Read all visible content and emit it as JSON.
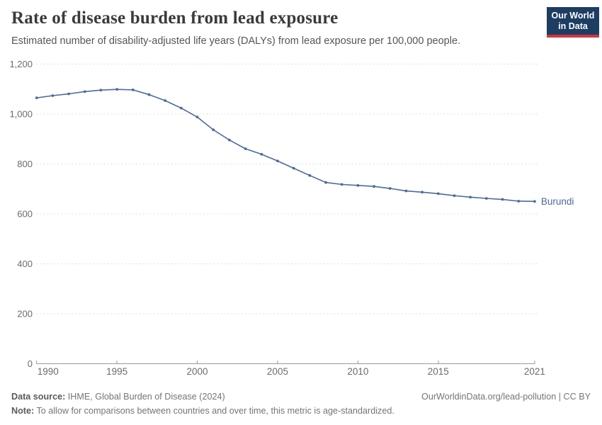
{
  "header": {
    "title": "Rate of disease burden from lead exposure",
    "subtitle": "Estimated number of disability-adjusted life years (DALYs) from lead exposure per 100,000 people.",
    "logo": {
      "line1": "Our World",
      "line2": "in Data",
      "bg_color": "#1d3d63",
      "accent_color": "#d1353f"
    }
  },
  "chart_data": {
    "type": "line",
    "title": "Rate of disease burden from lead exposure",
    "xlabel": "",
    "ylabel": "",
    "xlim": [
      1990,
      2021
    ],
    "ylim": [
      0,
      1200
    ],
    "grid": "horizontal-dashed",
    "legend_position": "end-of-line-label",
    "x": [
      1990,
      1991,
      1992,
      1993,
      1994,
      1995,
      1996,
      1997,
      1998,
      1999,
      2000,
      2001,
      2002,
      2003,
      2004,
      2005,
      2006,
      2007,
      2008,
      2009,
      2010,
      2011,
      2012,
      2013,
      2014,
      2015,
      2016,
      2017,
      2018,
      2019,
      2020,
      2021
    ],
    "series": [
      {
        "name": "Burundi",
        "color": "#4C6A9C",
        "values": [
          1065,
          1074,
          1081,
          1090,
          1096,
          1099,
          1097,
          1078,
          1054,
          1024,
          988,
          937,
          896,
          861,
          839,
          812,
          783,
          754,
          726,
          718,
          714,
          710,
          702,
          692,
          687,
          681,
          673,
          667,
          662,
          658,
          651,
          650
        ]
      }
    ],
    "xticks": [
      {
        "value": 1990,
        "label": "1990"
      },
      {
        "value": 1995,
        "label": "1995"
      },
      {
        "value": 2000,
        "label": "2000"
      },
      {
        "value": 2005,
        "label": "2005"
      },
      {
        "value": 2010,
        "label": "2010"
      },
      {
        "value": 2015,
        "label": "2015"
      },
      {
        "value": 2021,
        "label": "2021"
      }
    ],
    "yticks": [
      {
        "value": 0,
        "label": "0"
      },
      {
        "value": 200,
        "label": "200"
      },
      {
        "value": 400,
        "label": "400"
      },
      {
        "value": 600,
        "label": "600"
      },
      {
        "value": 800,
        "label": "800"
      },
      {
        "value": 1000,
        "label": "1,000"
      },
      {
        "value": 1200,
        "label": "1,200"
      }
    ]
  },
  "footer": {
    "data_source_label": "Data source:",
    "data_source_value": " IHME, Global Burden of Disease (2024)",
    "note_label": "Note:",
    "note_value": " To allow for comparisons between countries and over time, this metric is age-standardized.",
    "url_text": "OurWorldinData.org/lead-pollution",
    "license_separator": " | ",
    "license_text": "CC BY"
  }
}
